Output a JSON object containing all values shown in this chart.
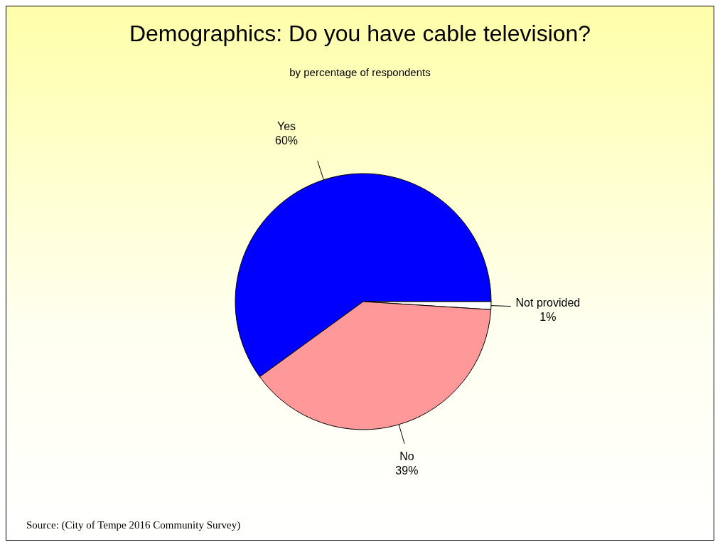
{
  "chart_data": {
    "type": "pie",
    "title": "Demographics: Do you have cable television?",
    "subtitle": "by percentage of respondents",
    "categories": [
      "Yes",
      "Not provided",
      "No"
    ],
    "values": [
      60,
      1,
      39
    ],
    "value_labels": [
      "60%",
      "1%",
      "39%"
    ],
    "colors": [
      "#0000ff",
      "#ffffff",
      "#ff9999"
    ],
    "annotations": [
      "Source: (City of Tempe 2016 Community Survey)"
    ]
  }
}
